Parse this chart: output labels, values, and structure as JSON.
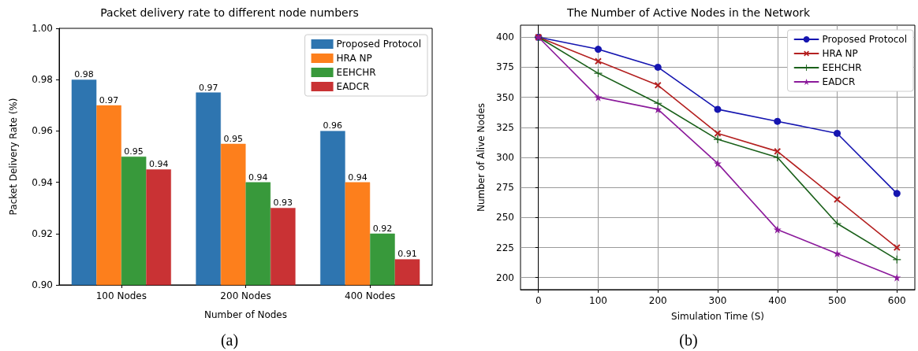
{
  "chart_data": [
    {
      "type": "bar",
      "title": "Packet delivery rate to different node numbers",
      "xlabel": "Number of Nodes",
      "ylabel": "Packet Delivery Rate (%)",
      "annotations": [
        "(a)"
      ],
      "categories": [
        "100 Nodes",
        "200 Nodes",
        "400 Nodes"
      ],
      "series": [
        {
          "name": "Proposed Protocol",
          "color": "#2e75b0",
          "values": [
            0.98,
            0.975,
            0.96
          ],
          "value_labels": [
            "0.98",
            "0.97",
            "0.96"
          ]
        },
        {
          "name": "HRA NP",
          "color": "#fd7f1c",
          "values": [
            0.97,
            0.955,
            0.94
          ],
          "value_labels": [
            "0.97",
            "0.95",
            "0.94"
          ]
        },
        {
          "name": "EEHCHR",
          "color": "#38993b",
          "values": [
            0.95,
            0.94,
            0.92
          ],
          "value_labels": [
            "0.95",
            "0.94",
            "0.92"
          ]
        },
        {
          "name": "EADCR",
          "color": "#c93234",
          "values": [
            0.945,
            0.93,
            0.91
          ],
          "value_labels": [
            "0.94",
            "0.93",
            "0.91"
          ]
        }
      ],
      "ylim": [
        0.9,
        1.0
      ],
      "yticks": [
        {
          "value": 0.9,
          "label": "0.90"
        },
        {
          "value": 0.92,
          "label": "0.92"
        },
        {
          "value": 0.94,
          "label": "0.94"
        },
        {
          "value": 0.96,
          "label": "0.96"
        },
        {
          "value": 0.98,
          "label": "0.98"
        },
        {
          "value": 1.0,
          "label": "1.00"
        }
      ],
      "grid": false,
      "legend": "top right"
    },
    {
      "type": "line",
      "title": "The Number of Active Nodes in the Network",
      "xlabel": "Simulation Time (S)",
      "ylabel": "Number of Alive Nodes",
      "annotations": [
        "(b)"
      ],
      "x": [
        0,
        100,
        200,
        300,
        400,
        500,
        600
      ],
      "series": [
        {
          "name": "Proposed Protocol",
          "color": "#1515b0",
          "marker": "circle",
          "values": [
            400,
            390,
            375,
            340,
            330,
            320,
            270
          ]
        },
        {
          "name": "HRA NP",
          "color": "#b42020",
          "marker": "cross",
          "values": [
            400,
            380,
            360,
            320,
            305,
            265,
            225
          ]
        },
        {
          "name": "EEHCHR",
          "color": "#1a601a",
          "marker": "plus",
          "values": [
            400,
            370,
            345,
            315,
            300,
            245,
            215
          ]
        },
        {
          "name": "EADCR",
          "color": "#8b1a9b",
          "marker": "star",
          "values": [
            400,
            350,
            340,
            295,
            240,
            220,
            200
          ]
        }
      ],
      "xlim": [
        -30,
        630
      ],
      "xticks": [
        0,
        100,
        200,
        300,
        400,
        500,
        600
      ],
      "ylim": [
        190,
        410
      ],
      "yticks": [
        200,
        225,
        250,
        275,
        300,
        325,
        350,
        375,
        400
      ],
      "grid": true,
      "legend": "top right",
      "line_style": "solid"
    }
  ]
}
